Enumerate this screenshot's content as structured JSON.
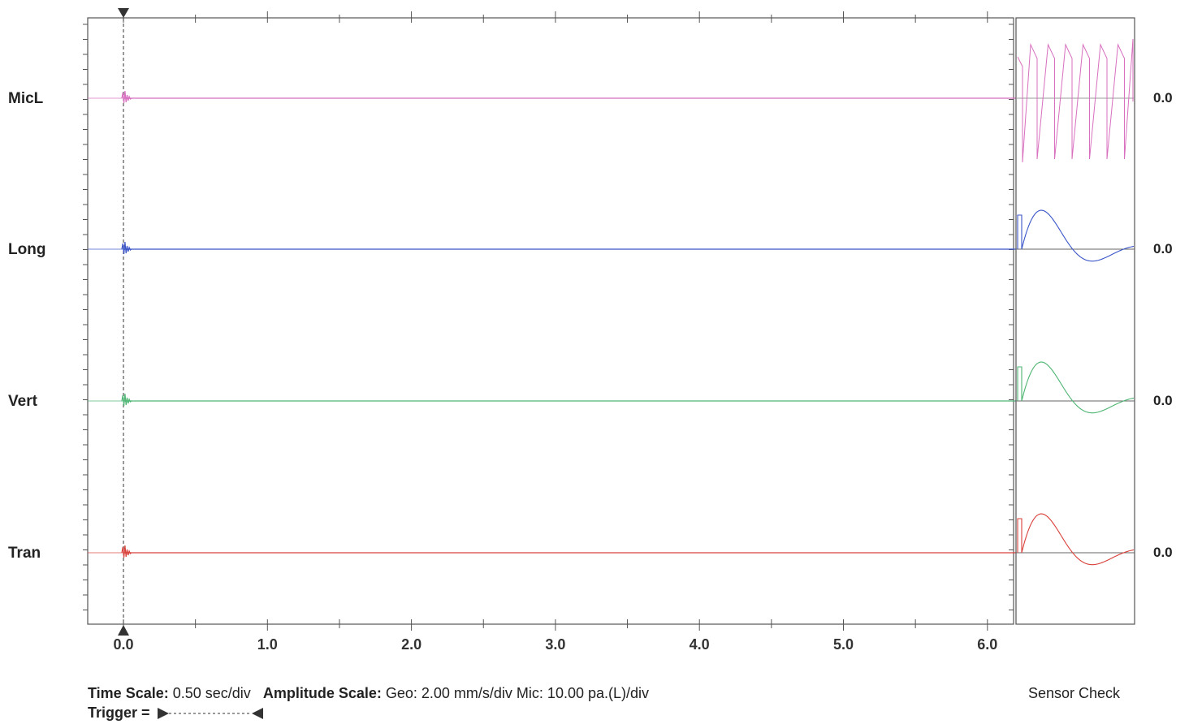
{
  "channels": [
    {
      "name": "MicL",
      "color": "#d86fbf",
      "zero": "0.0"
    },
    {
      "name": "Long",
      "color": "#3b55c8",
      "zero": "0.0"
    },
    {
      "name": "Vert",
      "color": "#4fb573",
      "zero": "0.0"
    },
    {
      "name": "Tran",
      "color": "#d9403a",
      "zero": "0.0"
    }
  ],
  "footer": {
    "time_scale_label": "Time Scale:",
    "time_scale_value": "0.50 sec/div",
    "amplitude_label": "Amplitude Scale:",
    "amplitude_value": "Geo: 2.00 mm/s/div Mic: 10.00 pa.(L)/div",
    "trigger_label": "Trigger =",
    "sensor_check": "Sensor Check"
  },
  "chart_data": {
    "type": "line",
    "xlabel": "",
    "ylabel": "",
    "x_tick_labels": [
      "0.0",
      "1.0",
      "2.0",
      "3.0",
      "4.0",
      "5.0",
      "6.0"
    ],
    "xlim": [
      -0.25,
      6.2
    ],
    "trigger_time": 0.0,
    "series": [
      {
        "name": "MicL",
        "x": [
          0.0,
          6.2
        ],
        "values": [
          0.0,
          0.0
        ]
      },
      {
        "name": "Long",
        "x": [
          0.0,
          6.2
        ],
        "values": [
          0.0,
          0.0
        ]
      },
      {
        "name": "Vert",
        "x": [
          0.0,
          6.2
        ],
        "values": [
          0.0,
          0.0
        ]
      },
      {
        "name": "Tran",
        "x": [
          0.0,
          6.2
        ],
        "values": [
          0.0,
          0.0
        ]
      }
    ]
  }
}
